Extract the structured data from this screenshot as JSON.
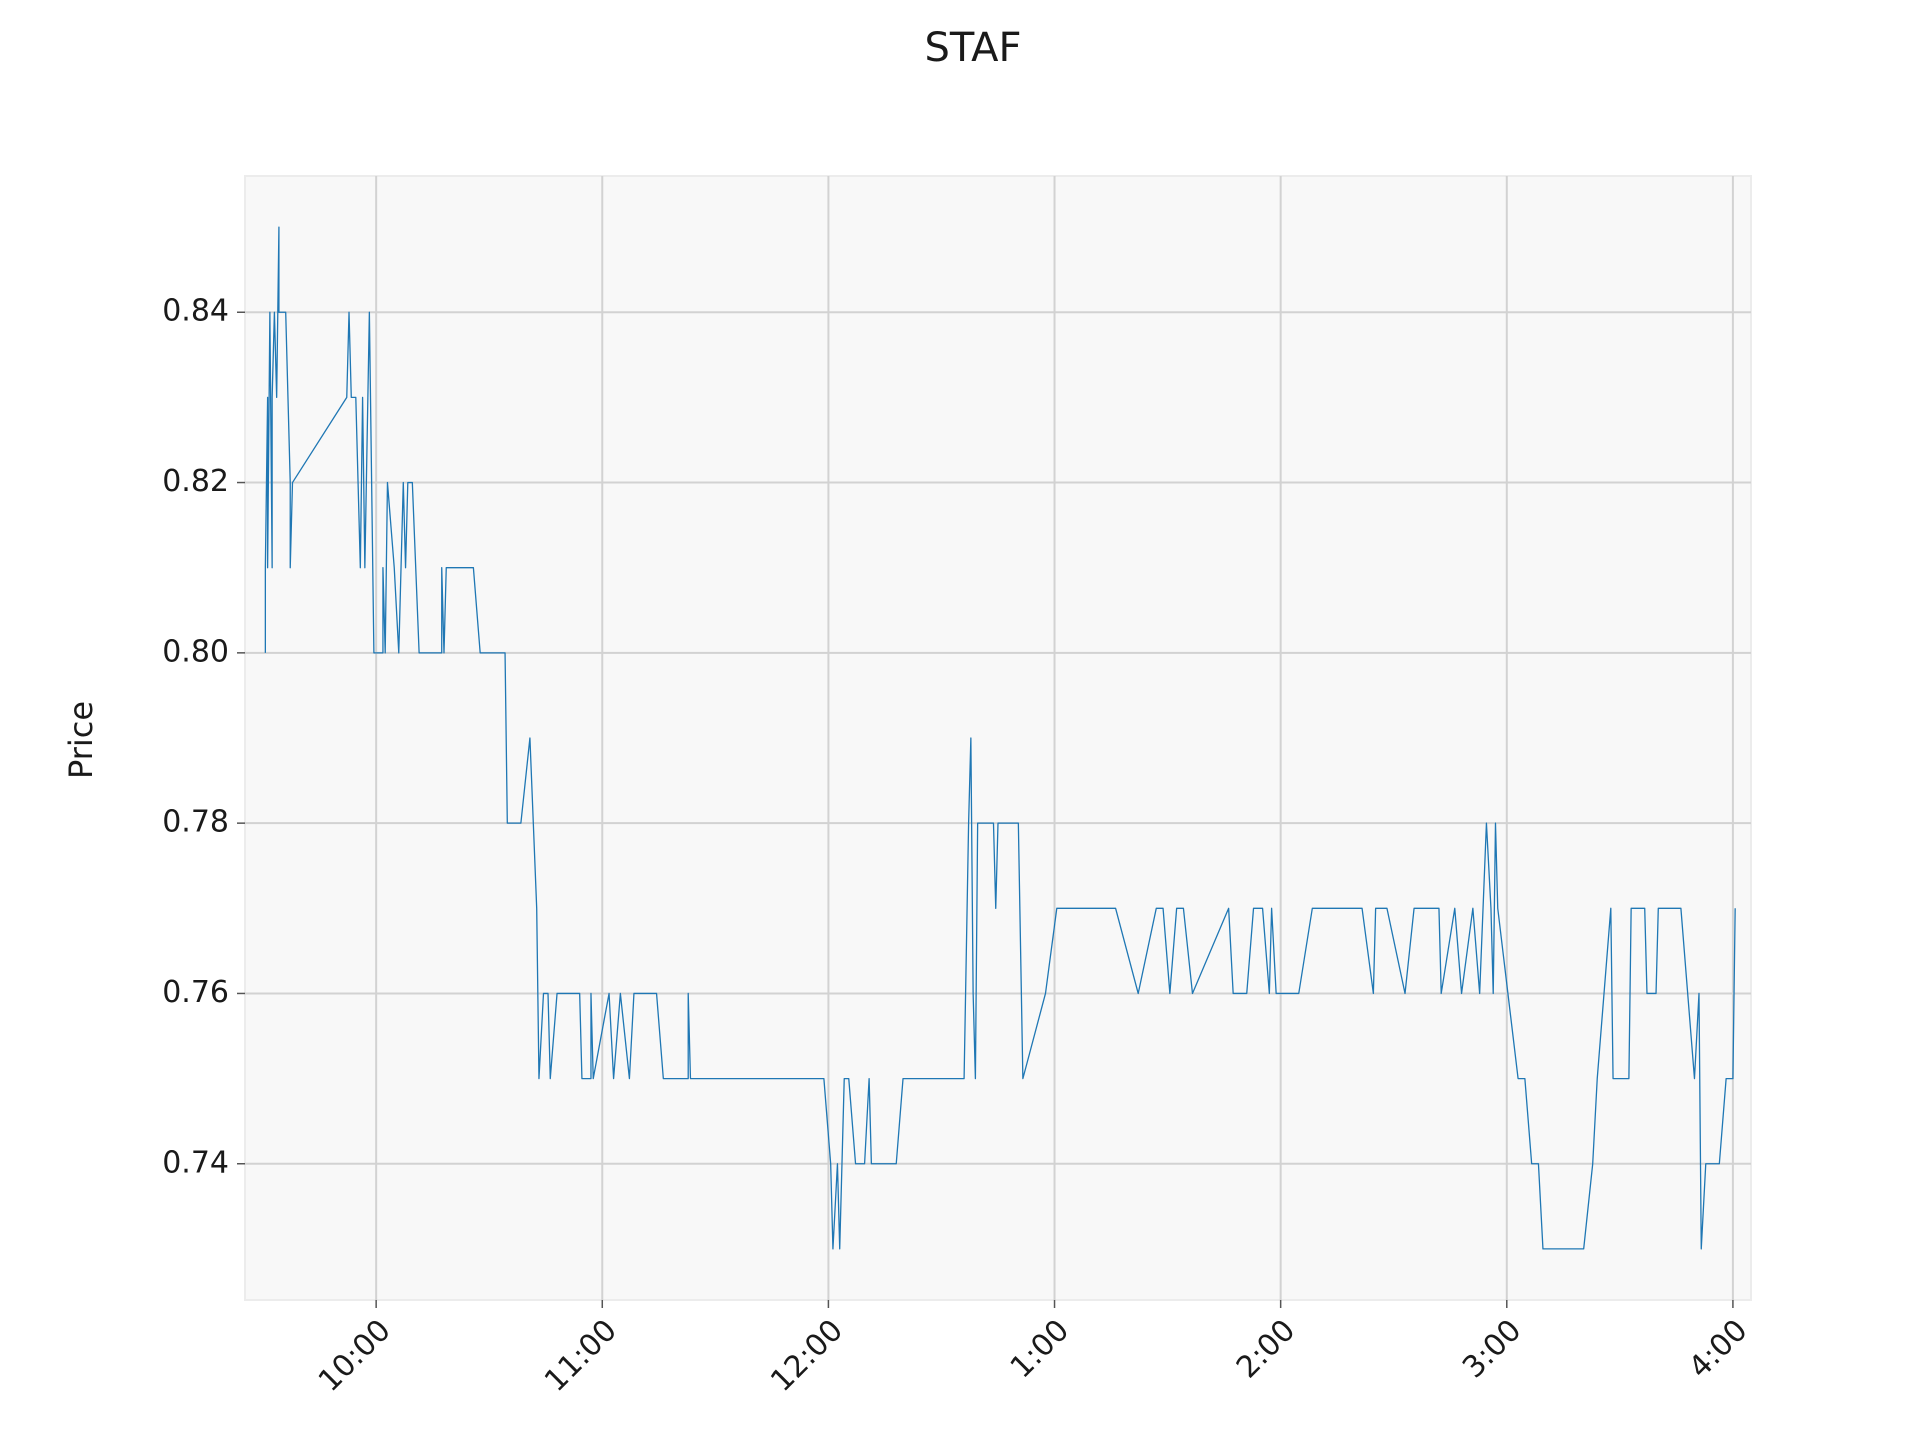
{
  "chart_data": {
    "type": "line",
    "title": "STAF",
    "y_label": "Price",
    "xlim": [
      9.42,
      16.08
    ],
    "ylim": [
      0.724,
      0.856
    ],
    "xticks": [
      {
        "value": 10,
        "label": "10:00"
      },
      {
        "value": 11,
        "label": "11:00"
      },
      {
        "value": 12,
        "label": "12:00"
      },
      {
        "value": 13,
        "label": "1:00"
      },
      {
        "value": 14,
        "label": "2:00"
      },
      {
        "value": 15,
        "label": "3:00"
      },
      {
        "value": 16,
        "label": "4:00"
      }
    ],
    "yticks": [
      0.74,
      0.76,
      0.78,
      {
        "value": 0.8,
        "label": "0.80"
      },
      0.82,
      0.84
    ],
    "grid": true,
    "x": [
      9.51,
      9.51,
      9.52,
      9.52,
      9.53,
      9.54,
      9.54,
      9.55,
      9.56,
      9.57,
      9.57,
      9.6,
      9.61,
      9.62,
      9.62,
      9.63,
      9.87,
      9.88,
      9.89,
      9.91,
      9.93,
      9.94,
      9.95,
      9.97,
      9.99,
      10.03,
      10.03,
      10.04,
      10.05,
      10.08,
      10.1,
      10.12,
      10.13,
      10.14,
      10.16,
      10.19,
      10.29,
      10.29,
      10.3,
      10.31,
      10.43,
      10.46,
      10.57,
      10.58,
      10.64,
      10.68,
      10.71,
      10.72,
      10.74,
      10.76,
      10.77,
      10.8,
      10.9,
      10.91,
      10.95,
      10.95,
      10.96,
      11.03,
      11.05,
      11.08,
      11.12,
      11.14,
      11.24,
      11.27,
      11.38,
      11.38,
      11.39,
      11.98,
      12.01,
      12.02,
      12.04,
      12.05,
      12.07,
      12.09,
      12.12,
      12.16,
      12.18,
      12.19,
      12.3,
      12.33,
      12.6,
      12.62,
      12.63,
      12.64,
      12.65,
      12.66,
      12.73,
      12.74,
      12.75,
      12.84,
      12.86,
      12.96,
      13.01,
      13.27,
      13.37,
      13.45,
      13.48,
      13.51,
      13.54,
      13.57,
      13.61,
      13.77,
      13.79,
      13.85,
      13.88,
      13.92,
      13.95,
      13.96,
      13.98,
      14.08,
      14.14,
      14.36,
      14.41,
      14.42,
      14.47,
      14.55,
      14.59,
      14.7,
      14.71,
      14.77,
      14.8,
      14.85,
      14.88,
      14.91,
      14.93,
      14.94,
      14.95,
      14.96,
      15.05,
      15.08,
      15.11,
      15.14,
      15.16,
      15.34,
      15.38,
      15.4,
      15.46,
      15.47,
      15.54,
      15.55,
      15.61,
      15.62,
      15.66,
      15.67,
      15.77,
      15.83,
      15.85,
      15.86,
      15.88,
      15.94,
      15.97,
      16.0,
      16.01
    ],
    "series": [
      {
        "name": "STAF",
        "color": "#1f77b4",
        "values": [
          0.8,
          0.81,
          0.83,
          0.81,
          0.84,
          0.81,
          0.83,
          0.84,
          0.83,
          0.85,
          0.84,
          0.84,
          0.83,
          0.82,
          0.81,
          0.82,
          0.83,
          0.84,
          0.83,
          0.83,
          0.81,
          0.83,
          0.81,
          0.84,
          0.8,
          0.8,
          0.81,
          0.8,
          0.82,
          0.81,
          0.8,
          0.82,
          0.81,
          0.82,
          0.82,
          0.8,
          0.8,
          0.81,
          0.8,
          0.81,
          0.81,
          0.8,
          0.8,
          0.78,
          0.78,
          0.79,
          0.77,
          0.75,
          0.76,
          0.76,
          0.75,
          0.76,
          0.76,
          0.75,
          0.75,
          0.76,
          0.75,
          0.76,
          0.75,
          0.76,
          0.75,
          0.76,
          0.76,
          0.75,
          0.75,
          0.76,
          0.75,
          0.75,
          0.74,
          0.73,
          0.74,
          0.73,
          0.75,
          0.75,
          0.74,
          0.74,
          0.75,
          0.74,
          0.74,
          0.75,
          0.75,
          0.78,
          0.79,
          0.76,
          0.75,
          0.78,
          0.78,
          0.77,
          0.78,
          0.78,
          0.75,
          0.76,
          0.77,
          0.77,
          0.76,
          0.77,
          0.77,
          0.76,
          0.77,
          0.77,
          0.76,
          0.77,
          0.76,
          0.76,
          0.77,
          0.77,
          0.76,
          0.77,
          0.76,
          0.76,
          0.77,
          0.77,
          0.76,
          0.77,
          0.77,
          0.76,
          0.77,
          0.77,
          0.76,
          0.77,
          0.76,
          0.77,
          0.76,
          0.78,
          0.77,
          0.76,
          0.78,
          0.77,
          0.75,
          0.75,
          0.74,
          0.74,
          0.73,
          0.73,
          0.74,
          0.75,
          0.77,
          0.75,
          0.75,
          0.77,
          0.77,
          0.76,
          0.76,
          0.77,
          0.77,
          0.75,
          0.76,
          0.73,
          0.74,
          0.74,
          0.75,
          0.75,
          0.77
        ]
      }
    ]
  }
}
